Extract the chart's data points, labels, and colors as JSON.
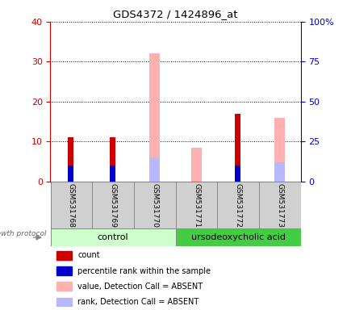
{
  "title": "GDS4372 / 1424896_at",
  "samples": [
    "GSM531768",
    "GSM531769",
    "GSM531770",
    "GSM531771",
    "GSM531772",
    "GSM531773"
  ],
  "count_values": [
    11,
    11,
    0,
    0,
    17,
    0
  ],
  "percentile_values": [
    10,
    10,
    0,
    0,
    10,
    0
  ],
  "absent_value_values": [
    0,
    0,
    32,
    8.5,
    0,
    16
  ],
  "absent_rank_values": [
    0,
    0,
    15,
    0,
    0,
    12
  ],
  "left_ylim": [
    0,
    40
  ],
  "right_ylim": [
    0,
    100
  ],
  "left_yticks": [
    0,
    10,
    20,
    30,
    40
  ],
  "right_yticks": [
    0,
    25,
    50,
    75,
    100
  ],
  "left_ylabel_color": "#cc0000",
  "right_ylabel_color": "#0000cc",
  "count_color": "#cc0000",
  "percentile_color": "#0000cc",
  "absent_value_color": "#ffb0b0",
  "absent_rank_color": "#b8b8ff",
  "group_label_bg_control": "#ccffcc",
  "group_label_bg_urso": "#44cc44",
  "sample_label_bg": "#d0d0d0",
  "legend_items": [
    {
      "color": "#cc0000",
      "label": "count"
    },
    {
      "color": "#0000cc",
      "label": "percentile rank within the sample"
    },
    {
      "color": "#ffb0b0",
      "label": "value, Detection Call = ABSENT"
    },
    {
      "color": "#b8b8ff",
      "label": "rank, Detection Call = ABSENT"
    }
  ]
}
